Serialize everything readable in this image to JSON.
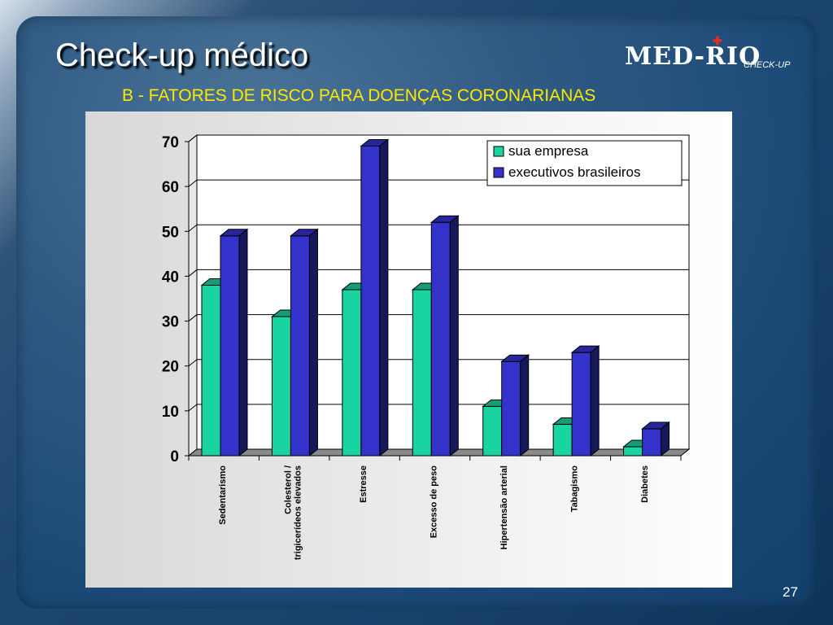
{
  "slide": {
    "title": "Check-up médico",
    "subtitle": "B - FATORES DE RISCO PARA DOENÇAS CORONARIANAS",
    "page_number": "27",
    "logo": {
      "main": "MED-RIO",
      "sub": "CHECK-UP"
    }
  },
  "chart_data": {
    "type": "bar",
    "categories": [
      "Sedentarismo",
      "Colesterol / trigicerídeos elevados",
      "Estresse",
      "Excesso de peso",
      "Hipertensão arterial",
      "Tabagismo",
      "Diabetes"
    ],
    "category_lines": [
      [
        "Sedentarismo"
      ],
      [
        "Colesterol /",
        "trigicerídeos elevados"
      ],
      [
        "Estresse"
      ],
      [
        "Excesso de peso"
      ],
      [
        "Hipertensão arterial"
      ],
      [
        "Tabagismo"
      ],
      [
        "Diabetes"
      ]
    ],
    "series": [
      {
        "name": "sua empresa",
        "values": [
          38,
          31,
          37,
          37,
          11,
          7,
          2
        ],
        "color": "#19d3a0"
      },
      {
        "name": "executivos brasileiros",
        "values": [
          49,
          49,
          69,
          52,
          21,
          23,
          6
        ],
        "color": "#3333cc"
      }
    ],
    "yticks": [
      0,
      10,
      20,
      30,
      40,
      50,
      60,
      70
    ],
    "ylim": [
      0,
      70
    ],
    "grid": true,
    "legend_position": "top-right",
    "style": "3d"
  }
}
